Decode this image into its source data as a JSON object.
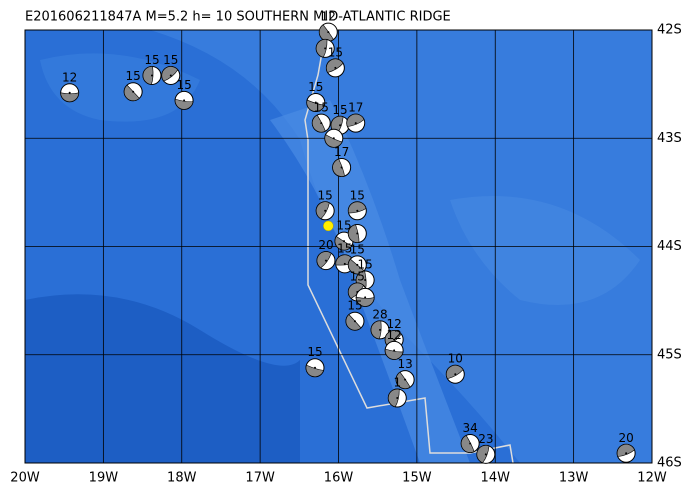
{
  "map": {
    "title": "E201606211847A M=5.2 h= 10 SOUTHERN MID-ATLANTIC RIDGE",
    "xlim": [
      -20,
      -12
    ],
    "ylim": [
      -46,
      -42
    ],
    "xticks": [
      {
        "value": -20,
        "label": "20W"
      },
      {
        "value": -19,
        "label": "19W"
      },
      {
        "value": -18,
        "label": "18W"
      },
      {
        "value": -17,
        "label": "17W"
      },
      {
        "value": -16,
        "label": "16W"
      },
      {
        "value": -15,
        "label": "15W"
      },
      {
        "value": -14,
        "label": "14W"
      },
      {
        "value": -13,
        "label": "13W"
      },
      {
        "value": -12,
        "label": "12W"
      }
    ],
    "yticks": [
      {
        "value": -42,
        "label": "42S"
      },
      {
        "value": -43,
        "label": "43S"
      },
      {
        "value": -44,
        "label": "44S"
      },
      {
        "value": -45,
        "label": "45S"
      },
      {
        "value": -46,
        "label": "46S"
      }
    ],
    "epicenter": {
      "lon": -16.13,
      "lat": -43.81,
      "color": "#ffee00"
    },
    "events": [
      {
        "lon": -19.43,
        "lat": -42.58,
        "label": "12"
      },
      {
        "lon": -18.62,
        "lat": -42.57,
        "label": "15"
      },
      {
        "lon": -18.38,
        "lat": -42.42,
        "label": "15"
      },
      {
        "lon": -18.14,
        "lat": -42.42,
        "label": "15"
      },
      {
        "lon": -17.97,
        "lat": -42.65,
        "label": "15"
      },
      {
        "lon": -16.13,
        "lat": -42.02,
        "label": "12"
      },
      {
        "lon": -16.17,
        "lat": -42.17
      },
      {
        "lon": -16.04,
        "lat": -42.35,
        "label": "15"
      },
      {
        "lon": -16.29,
        "lat": -42.67,
        "label": "15"
      },
      {
        "lon": -16.22,
        "lat": -42.86,
        "label": "15"
      },
      {
        "lon": -15.98,
        "lat": -42.88,
        "label": "15"
      },
      {
        "lon": -15.78,
        "lat": -42.86,
        "label": "17"
      },
      {
        "lon": -16.06,
        "lat": -43.0
      },
      {
        "lon": -15.96,
        "lat": -43.27,
        "label": "17"
      },
      {
        "lon": -16.17,
        "lat": -43.67,
        "label": "15"
      },
      {
        "lon": -15.76,
        "lat": -43.67,
        "label": "15"
      },
      {
        "lon": -15.93,
        "lat": -43.95,
        "label": "15"
      },
      {
        "lon": -15.76,
        "lat": -43.88
      },
      {
        "lon": -16.16,
        "lat": -44.13,
        "label": "20"
      },
      {
        "lon": -15.92,
        "lat": -44.16,
        "label": "15"
      },
      {
        "lon": -15.76,
        "lat": -44.17,
        "label": "15"
      },
      {
        "lon": -15.66,
        "lat": -44.31,
        "label": "15"
      },
      {
        "lon": -15.76,
        "lat": -44.42,
        "label": "15"
      },
      {
        "lon": -15.66,
        "lat": -44.47
      },
      {
        "lon": -15.79,
        "lat": -44.69,
        "label": "15"
      },
      {
        "lon": -15.47,
        "lat": -44.77,
        "label": "28"
      },
      {
        "lon": -15.29,
        "lat": -44.86,
        "label": "12"
      },
      {
        "lon": -15.29,
        "lat": -44.96,
        "label": "12"
      },
      {
        "lon": -15.15,
        "lat": -45.23,
        "label": "13"
      },
      {
        "lon": -15.25,
        "lat": -45.4,
        "label": "1"
      },
      {
        "lon": -14.51,
        "lat": -45.18,
        "label": "10"
      },
      {
        "lon": -16.3,
        "lat": -45.12,
        "label": "15"
      },
      {
        "lon": -14.32,
        "lat": -45.82,
        "label": "34"
      },
      {
        "lon": -14.12,
        "lat": -45.92,
        "label": "23"
      },
      {
        "lon": -12.33,
        "lat": -45.91,
        "label": "20"
      }
    ]
  }
}
